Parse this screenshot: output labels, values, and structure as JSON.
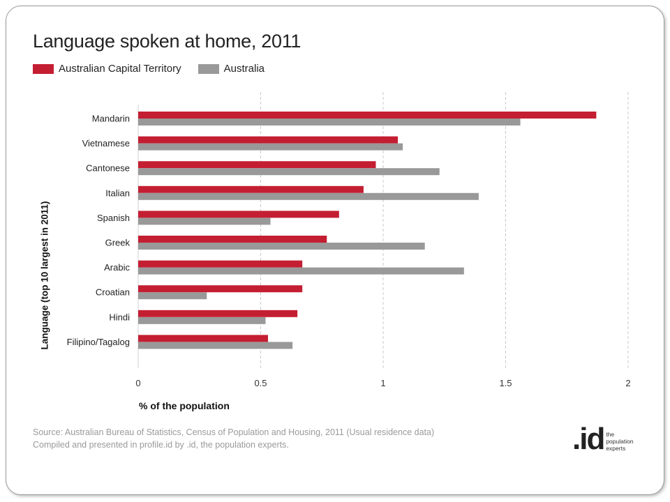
{
  "chart_data": {
    "type": "bar",
    "orientation": "horizontal",
    "title": "Language spoken at home, 2011",
    "xlabel": "% of the population",
    "ylabel": "Language (top 10 largest in 2011)",
    "xlim": [
      0,
      2
    ],
    "xticks": [
      0,
      0.5,
      1,
      1.5,
      2
    ],
    "xtick_labels": [
      "0",
      "0.5",
      "1",
      "1.5",
      "2"
    ],
    "grid": "vertical dashed",
    "legend_position": "top-left",
    "categories": [
      "Mandarin",
      "Vietnamese",
      "Cantonese",
      "Italian",
      "Spanish",
      "Greek",
      "Arabic",
      "Croatian",
      "Hindi",
      "Filipino/Tagalog"
    ],
    "series": [
      {
        "name": "Australian Capital Territory",
        "color": "#c41e32",
        "values": [
          1.87,
          1.06,
          0.97,
          0.92,
          0.82,
          0.77,
          0.67,
          0.67,
          0.65,
          0.53
        ]
      },
      {
        "name": "Australia",
        "color": "#999999",
        "values": [
          1.56,
          1.08,
          1.23,
          1.39,
          0.54,
          1.17,
          1.33,
          0.28,
          0.52,
          0.63
        ]
      }
    ]
  },
  "source_line1": "Source: Australian Bureau of Statistics, Census of Population and Housing, 2011 (Usual residence data)",
  "source_line2": "Compiled and presented in profile.id by .id, the population experts.",
  "logo": {
    "mark": ".id",
    "tagline": [
      "the",
      "population",
      "experts"
    ]
  }
}
